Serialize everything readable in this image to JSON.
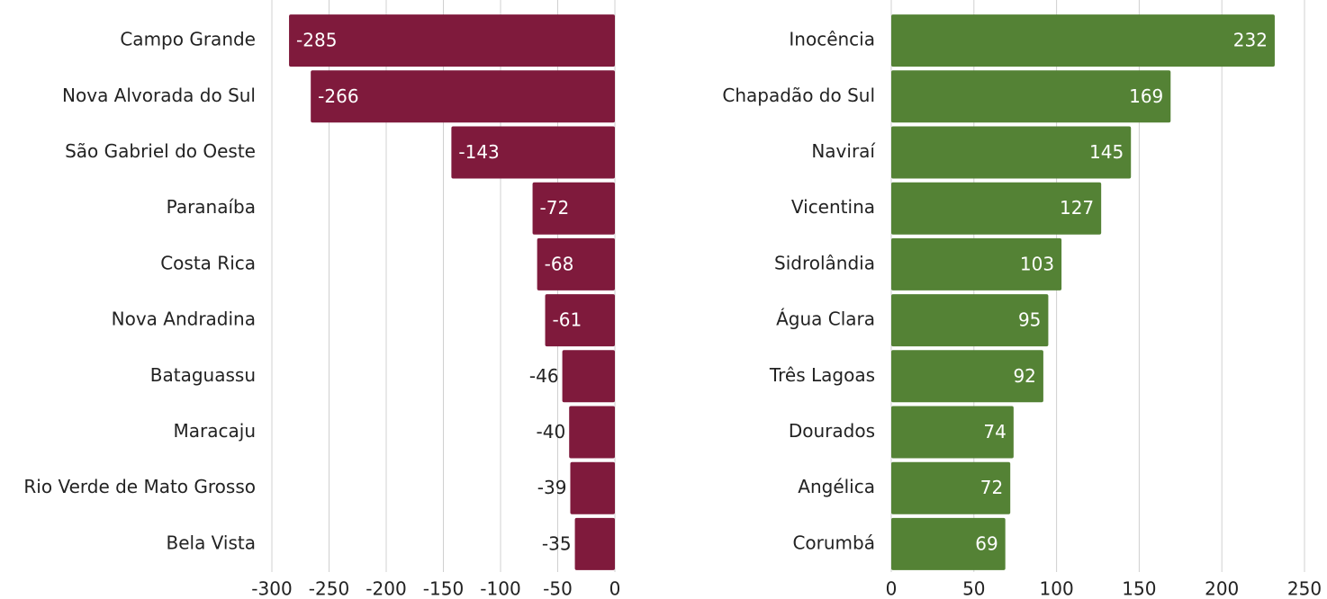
{
  "chart_data": [
    {
      "type": "hbar",
      "categories": [
        "Campo Grande",
        "Nova Alvorada do Sul",
        "São Gabriel do Oeste",
        "Paranaíba",
        "Costa Rica",
        "Nova Andradina",
        "Bataguassu",
        "Maracaju",
        "Rio Verde de Mato Grosso",
        "Bela Vista"
      ],
      "values": [
        -285,
        -266,
        -143,
        -72,
        -68,
        -61,
        -46,
        -40,
        -39,
        -35
      ],
      "color": "#7f1a3c",
      "xlim": [
        -300,
        0
      ],
      "xticks": [
        -300,
        -250,
        -200,
        -150,
        -100,
        -50,
        0
      ],
      "grid": true
    },
    {
      "type": "hbar",
      "categories": [
        "Inocência",
        "Chapadão do Sul",
        "Naviraí",
        "Vicentina",
        "Sidrolândia",
        "Água Clara",
        "Três Lagoas",
        "Dourados",
        "Angélica",
        "Corumbá"
      ],
      "values": [
        232,
        169,
        145,
        127,
        103,
        95,
        92,
        74,
        72,
        69
      ],
      "color": "#548235",
      "xlim": [
        0,
        250
      ],
      "xticks": [
        0,
        50,
        100,
        150,
        200,
        250
      ],
      "grid": true
    }
  ]
}
